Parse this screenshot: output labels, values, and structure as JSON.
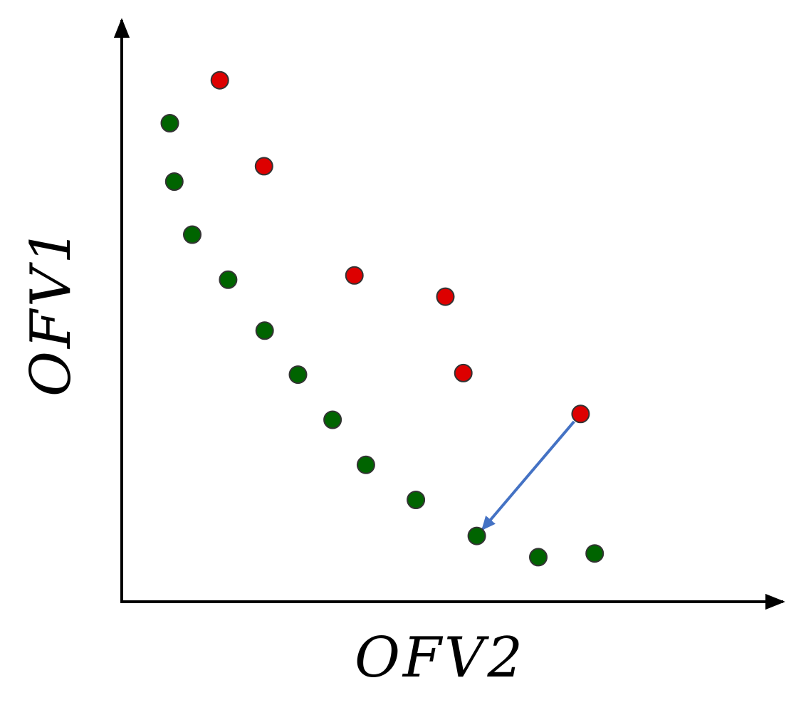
{
  "chart_data": {
    "type": "scatter",
    "title": "",
    "xlabel": "OFV2",
    "ylabel": "OFV1",
    "xlim": [
      0,
      100
    ],
    "ylim": [
      0,
      100
    ],
    "grid": false,
    "series": [
      {
        "color": "#006400",
        "points": [
          {
            "x": 7.5,
            "y": 90.2
          },
          {
            "x": 8.2,
            "y": 79.2
          },
          {
            "x": 11.0,
            "y": 69.2
          },
          {
            "x": 16.6,
            "y": 60.7
          },
          {
            "x": 22.3,
            "y": 51.1
          },
          {
            "x": 27.5,
            "y": 42.8
          },
          {
            "x": 32.9,
            "y": 34.3
          },
          {
            "x": 38.1,
            "y": 25.8
          },
          {
            "x": 45.9,
            "y": 19.2
          },
          {
            "x": 55.4,
            "y": 12.4
          },
          {
            "x": 65.0,
            "y": 8.4
          },
          {
            "x": 73.8,
            "y": 9.1
          }
        ]
      },
      {
        "color": "#dd0000",
        "points": [
          {
            "x": 15.3,
            "y": 98.3
          },
          {
            "x": 22.2,
            "y": 82.1
          },
          {
            "x": 36.3,
            "y": 61.5
          },
          {
            "x": 50.5,
            "y": 57.5
          },
          {
            "x": 53.3,
            "y": 43.1
          },
          {
            "x": 71.6,
            "y": 35.4
          }
        ]
      }
    ],
    "annotations": [
      {
        "type": "arrow",
        "from": {
          "x": 71.6,
          "y": 35.4
        },
        "to": {
          "x": 55.4,
          "y": 12.4
        },
        "color": "#4472c4"
      }
    ]
  }
}
